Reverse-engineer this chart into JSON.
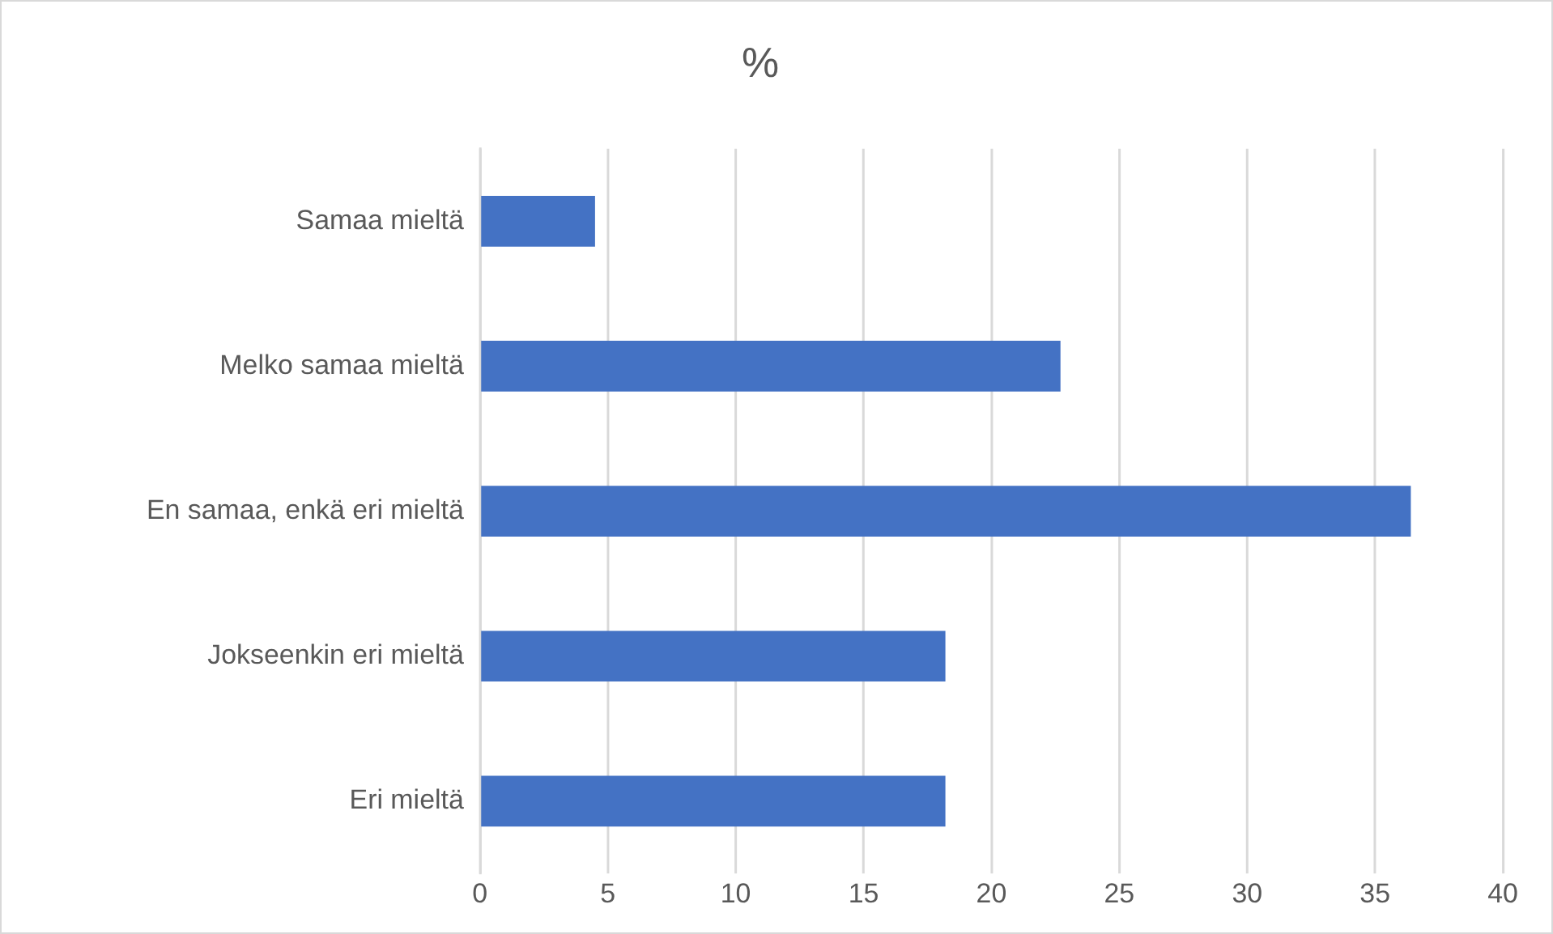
{
  "chart_data": {
    "type": "bar",
    "orientation": "horizontal",
    "title": "%",
    "categories": [
      "Samaa mieltä",
      "Melko samaa mieltä",
      "En samaa, enkä eri mieltä",
      "Jokseenkin eri mieltä",
      "Eri mieltä"
    ],
    "values": [
      4.5,
      22.7,
      36.4,
      18.2,
      18.2
    ],
    "color": "#4472c4",
    "xlim": [
      0,
      40
    ],
    "xticks": [
      0,
      5,
      10,
      15,
      20,
      25,
      30,
      35,
      40
    ],
    "grid": "x",
    "legend": false
  }
}
